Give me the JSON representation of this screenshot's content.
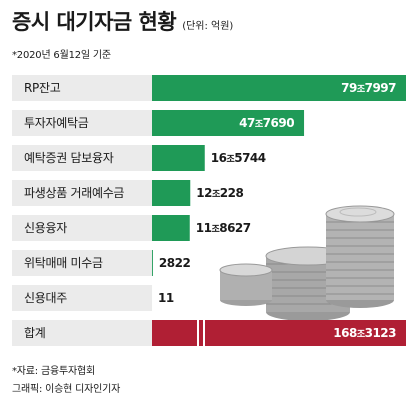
{
  "header": {
    "title": "증시 대기자금 현황",
    "unit": "(단위: 억원)",
    "date": "*2020년 6월12일 기준"
  },
  "colors": {
    "bar": "#1f9a57",
    "total_bar": "#b01f34",
    "label_bg": "#ebebeb"
  },
  "chart_data": {
    "type": "bar",
    "orientation": "horizontal",
    "categories": [
      "RP잔고",
      "투자자예탁금",
      "예탁증권 담보융자",
      "파생상품 거래예수금",
      "신용융자",
      "위탁매매 미수금",
      "신용대주",
      "합계"
    ],
    "values": [
      797997,
      477690,
      165744,
      120228,
      118627,
      2822,
      11,
      1683123
    ],
    "value_labels": [
      {
        "a": "79",
        "jo": "조",
        "b": "7997"
      },
      {
        "a": "47",
        "jo": "조",
        "b": "7690"
      },
      {
        "a": "16",
        "jo": "조",
        "b": "5744"
      },
      {
        "a": "12",
        "jo": "조",
        "b": "228"
      },
      {
        "a": "11",
        "jo": "조",
        "b": "8627"
      },
      {
        "a": "2822",
        "jo": "",
        "b": ""
      },
      {
        "a": "11",
        "jo": "",
        "b": ""
      },
      {
        "a": "168",
        "jo": "조",
        "b": "3123"
      }
    ],
    "total_axis_break": true
  },
  "footer": {
    "source": "*자료: 금융투자협회",
    "credit": "그래픽: 이승현 디자인기자"
  }
}
